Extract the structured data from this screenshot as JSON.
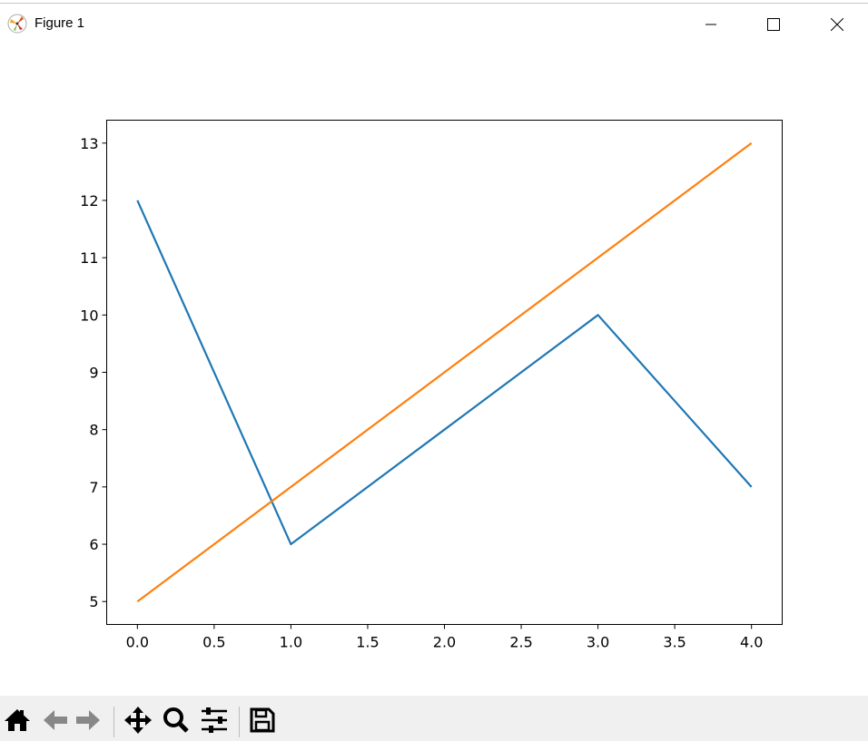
{
  "window": {
    "title": "Figure 1",
    "icon": "matplotlib-logo-icon"
  },
  "window_controls": [
    "minimize-icon",
    "maximize-icon",
    "close-icon"
  ],
  "toolbar": {
    "buttons": [
      {
        "name": "home",
        "icon": "home-icon"
      },
      {
        "name": "back",
        "icon": "arrow-left-icon"
      },
      {
        "name": "forward",
        "icon": "arrow-right-icon"
      },
      {
        "name": "pan",
        "icon": "move-icon"
      },
      {
        "name": "zoom",
        "icon": "magnifier-icon"
      },
      {
        "name": "configure-subplots",
        "icon": "sliders-icon"
      },
      {
        "name": "save",
        "icon": "floppy-disk-icon"
      }
    ]
  },
  "chart_data": {
    "type": "line",
    "x": [
      0,
      1,
      2,
      3,
      4
    ],
    "series": [
      {
        "values": [
          12,
          6,
          8,
          10,
          7
        ],
        "color": "#1f77b4"
      },
      {
        "values": [
          5,
          7,
          9,
          11,
          13
        ],
        "color": "#ff7f0e"
      }
    ],
    "xlim": [
      -0.2,
      4.2
    ],
    "ylim": [
      4.6,
      13.4
    ],
    "xticks": [
      "0.0",
      "0.5",
      "1.0",
      "1.5",
      "2.0",
      "2.5",
      "3.0",
      "3.5",
      "4.0"
    ],
    "yticks": [
      "5",
      "6",
      "7",
      "8",
      "9",
      "10",
      "11",
      "12",
      "13"
    ],
    "grid": false,
    "title": "",
    "xlabel": "",
    "ylabel": ""
  }
}
